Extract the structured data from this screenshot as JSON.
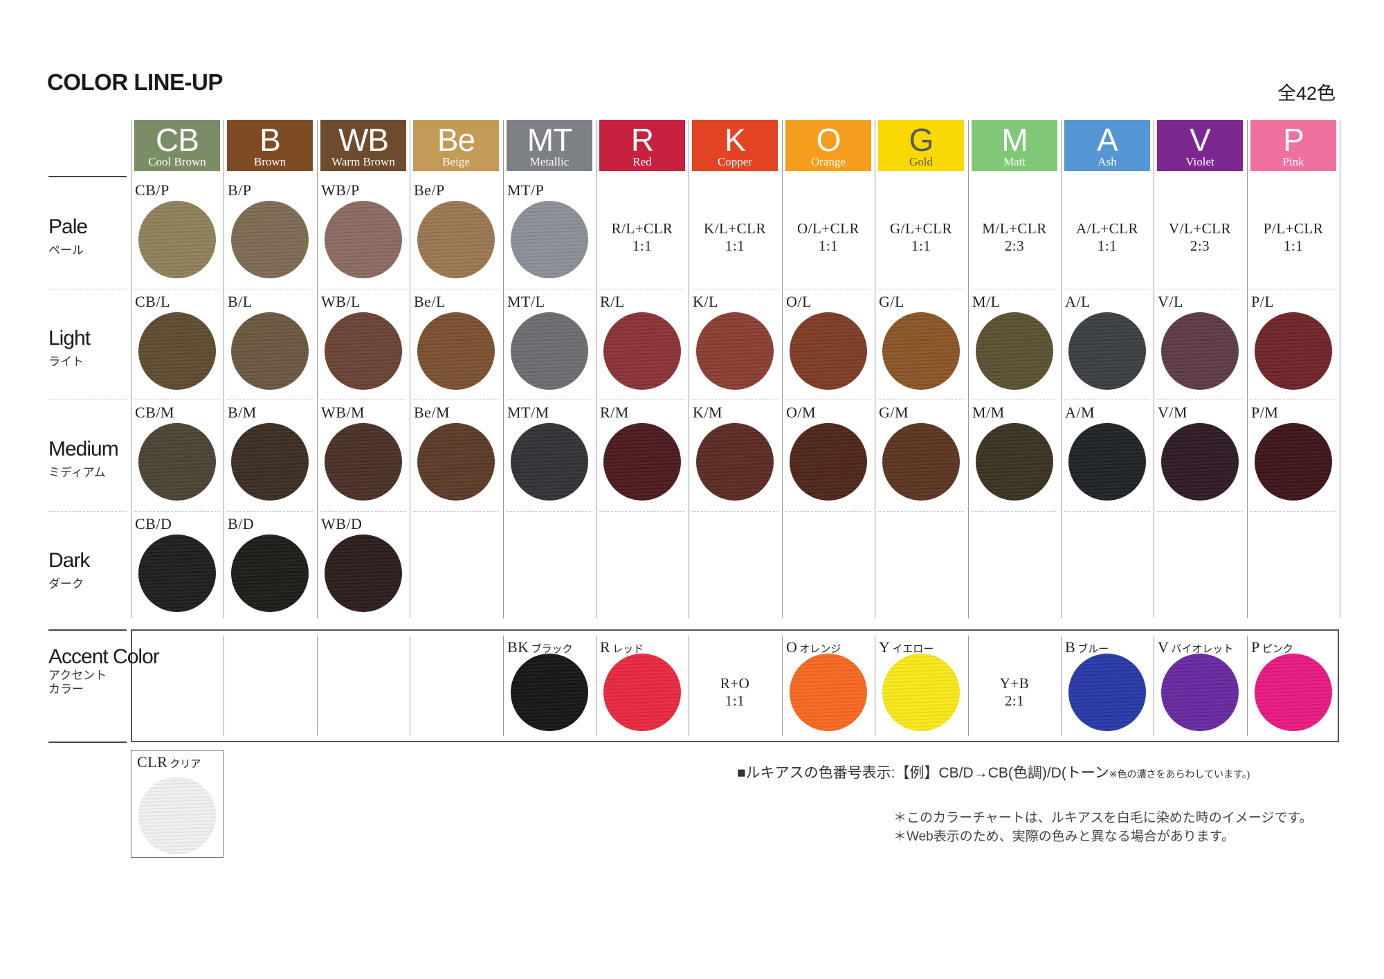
{
  "title": "COLOR LINE-UP",
  "total": "全42色",
  "columns": [
    {
      "code": "CB",
      "name": "Cool Brown",
      "color": "#7b8d66",
      "text": "#ffffff"
    },
    {
      "code": "B",
      "name": "Brown",
      "color": "#7e4b25",
      "text": "#ffffff"
    },
    {
      "code": "WB",
      "name": "Warm Brown",
      "color": "#6e4b2e",
      "text": "#ffffff"
    },
    {
      "code": "Be",
      "name": "Beige",
      "color": "#c39a56",
      "text": "#ffffff"
    },
    {
      "code": "MT",
      "name": "Metallic",
      "color": "#7d8186",
      "text": "#ffffff"
    },
    {
      "code": "R",
      "name": "Red",
      "color": "#c8203f",
      "text": "#ffffff"
    },
    {
      "code": "K",
      "name": "Copper",
      "color": "#e24424",
      "text": "#ffffff"
    },
    {
      "code": "O",
      "name": "Orange",
      "color": "#f59d1c",
      "text": "#ffffff"
    },
    {
      "code": "G",
      "name": "Gold",
      "color": "#f8d800",
      "text": "#5a5a5a"
    },
    {
      "code": "M",
      "name": "Matt",
      "color": "#80c878",
      "text": "#ffffff"
    },
    {
      "code": "A",
      "name": "Ash",
      "color": "#5596d4",
      "text": "#ffffff"
    },
    {
      "code": "V",
      "name": "Violet",
      "color": "#7d2890",
      "text": "#ffffff"
    },
    {
      "code": "P",
      "name": "Pink",
      "color": "#f070a0",
      "text": "#ffffff"
    }
  ],
  "rows": [
    {
      "en": "Pale",
      "jp": "ペール",
      "cells": [
        {
          "label": "CB/P",
          "color": "#8f8059"
        },
        {
          "label": "B/P",
          "color": "#7d6a52"
        },
        {
          "label": "WB/P",
          "color": "#8a6a60"
        },
        {
          "label": "Be/P",
          "color": "#9a7650"
        },
        {
          "label": "MT/P",
          "color": "#8a8e96"
        },
        {
          "mix": "R/L+CLR",
          "ratio": "1:1"
        },
        {
          "mix": "K/L+CLR",
          "ratio": "1:1"
        },
        {
          "mix": "O/L+CLR",
          "ratio": "1:1"
        },
        {
          "mix": "G/L+CLR",
          "ratio": "1:1"
        },
        {
          "mix": "M/L+CLR",
          "ratio": "2:3"
        },
        {
          "mix": "A/L+CLR",
          "ratio": "1:1"
        },
        {
          "mix": "V/L+CLR",
          "ratio": "2:3"
        },
        {
          "mix": "P/L+CLR",
          "ratio": "1:1"
        }
      ]
    },
    {
      "en": "Light",
      "jp": "ライト",
      "cells": [
        {
          "label": "CB/L",
          "color": "#5e4a30"
        },
        {
          "label": "B/L",
          "color": "#6a5740"
        },
        {
          "label": "WB/L",
          "color": "#6a4232"
        },
        {
          "label": "Be/L",
          "color": "#7a5030"
        },
        {
          "label": "MT/L",
          "color": "#6a6c70"
        },
        {
          "label": "R/L",
          "color": "#8a3236"
        },
        {
          "label": "K/L",
          "color": "#8a3e32"
        },
        {
          "label": "O/L",
          "color": "#7e3a22"
        },
        {
          "label": "G/L",
          "color": "#8a5426"
        },
        {
          "label": "M/L",
          "color": "#5a5030"
        },
        {
          "label": "A/L",
          "color": "#3a3e42"
        },
        {
          "label": "V/L",
          "color": "#5e3a46"
        },
        {
          "label": "P/L",
          "color": "#6e2428"
        }
      ]
    },
    {
      "en": "Medium",
      "jp": "ミディアム",
      "cells": [
        {
          "label": "CB/M",
          "color": "#4a4232"
        },
        {
          "label": "B/M",
          "color": "#3a2c20"
        },
        {
          "label": "WB/M",
          "color": "#4a3026"
        },
        {
          "label": "Be/M",
          "color": "#5a3a26"
        },
        {
          "label": "MT/M",
          "color": "#303236"
        },
        {
          "label": "R/M",
          "color": "#4a1a1e"
        },
        {
          "label": "K/M",
          "color": "#5a2a22"
        },
        {
          "label": "O/M",
          "color": "#4e2418"
        },
        {
          "label": "G/M",
          "color": "#5a3420"
        },
        {
          "label": "M/M",
          "color": "#3a3220"
        },
        {
          "label": "A/M",
          "color": "#1e2226"
        },
        {
          "label": "V/M",
          "color": "#2e1a26"
        },
        {
          "label": "P/M",
          "color": "#3e1418"
        }
      ]
    },
    {
      "en": "Dark",
      "jp": "ダーク",
      "cells": [
        {
          "label": "CB/D",
          "color": "#1c1e1b"
        },
        {
          "label": "B/D",
          "color": "#1c1b18"
        },
        {
          "label": "WB/D",
          "color": "#2c1c1c"
        },
        {},
        {},
        {},
        {},
        {},
        {},
        {},
        {},
        {},
        {}
      ]
    }
  ],
  "accent": {
    "en": "Accent Color",
    "jp": "アクセント カラー",
    "cells": [
      {},
      {},
      {},
      {},
      {
        "label": "BK",
        "jp": "ブラック",
        "color": "#151515"
      },
      {
        "label": "R",
        "jp": "レッド",
        "color": "#e8283e"
      },
      {
        "mix": "R+O",
        "ratio": "1:1"
      },
      {
        "label": "O",
        "jp": "オレンジ",
        "color": "#f86820"
      },
      {
        "label": "Y",
        "jp": "イエロー",
        "color": "#f8e818"
      },
      {
        "mix": "Y+B",
        "ratio": "2:1"
      },
      {
        "label": "B",
        "jp": "ブルー",
        "color": "#2838a8"
      },
      {
        "label": "V",
        "jp": "バイオレット",
        "color": "#6828a0"
      },
      {
        "label": "P",
        "jp": "ピンク",
        "color": "#e81880"
      }
    ]
  },
  "clear": {
    "label": "CLR",
    "jp": "クリア",
    "color": "#f2f2f4"
  },
  "legend_note": {
    "main": "■ルキアスの色番号表示:【例】CB/D→CB(色調)/D(トーン",
    "small": "※色の濃さをあらわしています。)"
  },
  "notes": [
    "＊このカラーチャートは、ルキアスを白毛に染めた時のイメージです。",
    "＊Web表示のため、実際の色みと異なる場合があります。"
  ]
}
